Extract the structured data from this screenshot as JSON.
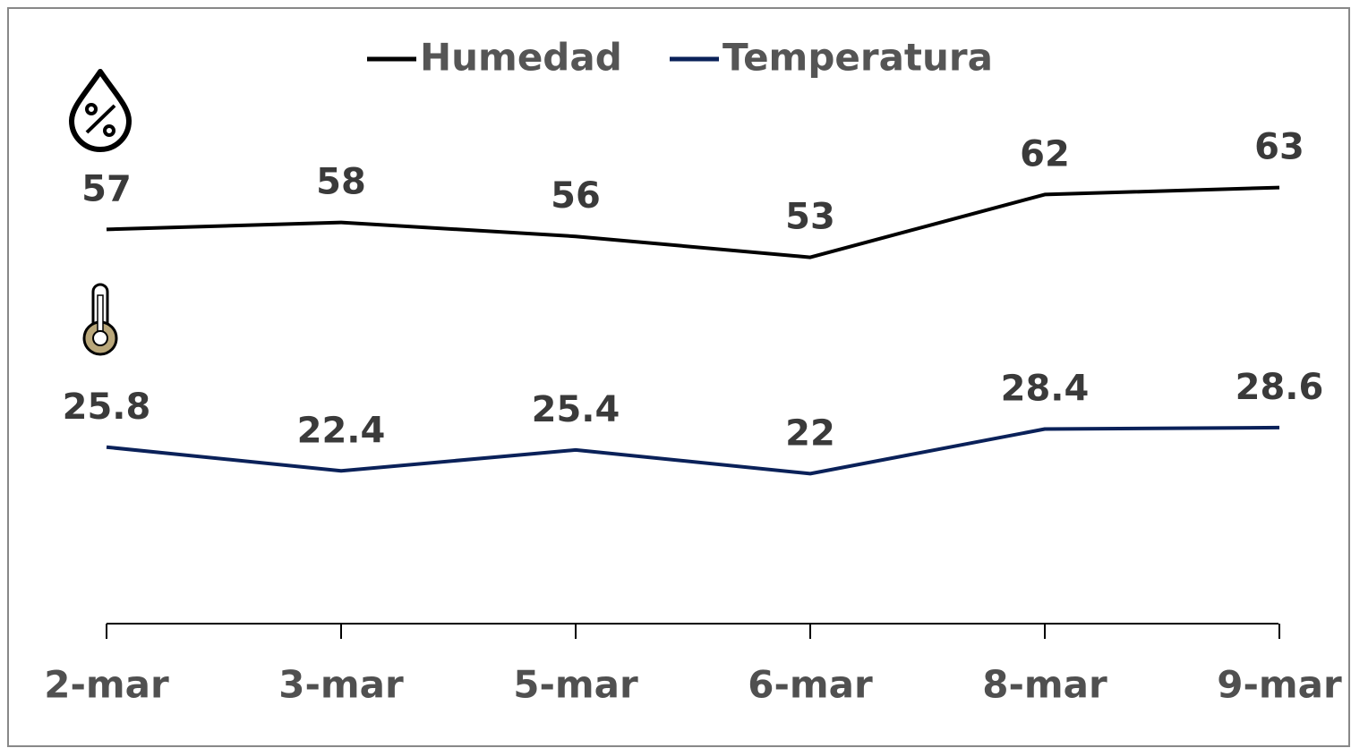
{
  "chart_data": {
    "type": "line",
    "categories": [
      "2-mar",
      "3-mar",
      "5-mar",
      "6-mar",
      "8-mar",
      "9-mar"
    ],
    "series": [
      {
        "name": "Humedad",
        "color": "#000000",
        "values": [
          57,
          58,
          56,
          53,
          62,
          63
        ]
      },
      {
        "name": "Temperatura",
        "color": "#0a2159",
        "values": [
          25.8,
          22.4,
          25.4,
          22,
          28.4,
          28.6
        ]
      }
    ],
    "ylim": [
      0,
      80
    ],
    "legend": "top"
  }
}
